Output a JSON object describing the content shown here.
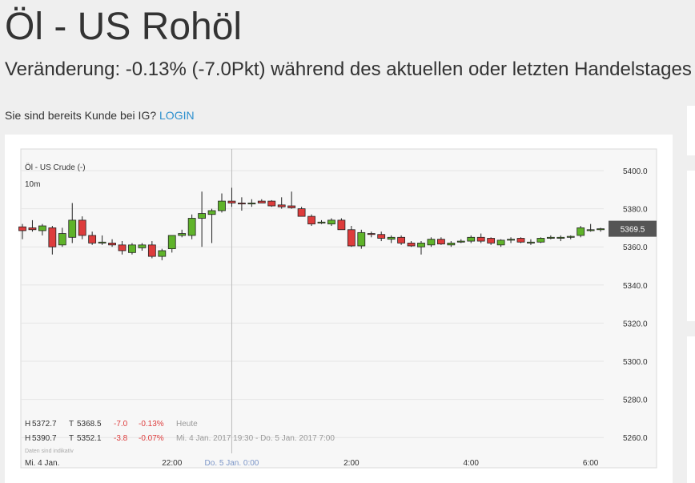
{
  "header": {
    "title": "Öl - US Rohöl",
    "change_text": "Veränderung: -0.13% (-7.0Pkt) während des aktuellen oder letzten Handelstages",
    "login_prompt": "Sie sind bereits Kunde bei IG?",
    "login_link": "LOGIN"
  },
  "chart_data": {
    "type": "candlestick",
    "title": "Öl - US Crude (-)",
    "interval": "10m",
    "ylim": [
      5252,
      5408
    ],
    "y_ticks": [
      "5400.0",
      "5380.0",
      "5360.0",
      "5340.0",
      "5320.0",
      "5300.0",
      "5280.0",
      "5260.0"
    ],
    "x_ticks": [
      {
        "label": "Mi. 4 Jan.",
        "index": 0
      },
      {
        "label": "22:00",
        "index": 15
      },
      {
        "label": "Do. 5 Jan. 0:00",
        "index": 21
      },
      {
        "label": "2:00",
        "index": 33
      },
      {
        "label": "4:00",
        "index": 45
      },
      {
        "label": "6:00",
        "index": 57
      }
    ],
    "current_price": "5369.5",
    "session_divider_index": 21,
    "candles": [
      {
        "o": 5370.5,
        "h": 5372.0,
        "l": 5364.0,
        "c": 5368.5
      },
      {
        "o": 5370.0,
        "h": 5374.0,
        "l": 5368.0,
        "c": 5369.0
      },
      {
        "o": 5368.5,
        "h": 5372.0,
        "l": 5366.0,
        "c": 5371.0
      },
      {
        "o": 5370.0,
        "h": 5371.0,
        "l": 5356.0,
        "c": 5360.0
      },
      {
        "o": 5361.0,
        "h": 5370.0,
        "l": 5360.0,
        "c": 5367.0
      },
      {
        "o": 5365.0,
        "h": 5383.0,
        "l": 5362.0,
        "c": 5374.0
      },
      {
        "o": 5374.0,
        "h": 5376.0,
        "l": 5364.0,
        "c": 5366.0
      },
      {
        "o": 5366.0,
        "h": 5368.0,
        "l": 5361.0,
        "c": 5362.0
      },
      {
        "o": 5362.0,
        "h": 5366.0,
        "l": 5361.0,
        "c": 5362.5
      },
      {
        "o": 5362.0,
        "h": 5364.0,
        "l": 5360.0,
        "c": 5361.0
      },
      {
        "o": 5361.0,
        "h": 5363.0,
        "l": 5356.0,
        "c": 5358.0
      },
      {
        "o": 5357.0,
        "h": 5362.0,
        "l": 5356.0,
        "c": 5361.0
      },
      {
        "o": 5359.5,
        "h": 5362.0,
        "l": 5358.0,
        "c": 5361.0
      },
      {
        "o": 5361.0,
        "h": 5363.0,
        "l": 5354.0,
        "c": 5355.0
      },
      {
        "o": 5355.0,
        "h": 5359.0,
        "l": 5353.0,
        "c": 5358.0
      },
      {
        "o": 5359.0,
        "h": 5366.0,
        "l": 5357.0,
        "c": 5366.0
      },
      {
        "o": 5366.0,
        "h": 5369.0,
        "l": 5365.0,
        "c": 5367.0
      },
      {
        "o": 5366.0,
        "h": 5377.0,
        "l": 5364.0,
        "c": 5375.0
      },
      {
        "o": 5375.0,
        "h": 5389.0,
        "l": 5360.0,
        "c": 5377.5
      },
      {
        "o": 5377.0,
        "h": 5380.0,
        "l": 5362.0,
        "c": 5379.0
      },
      {
        "o": 5379.0,
        "h": 5388.0,
        "l": 5378.0,
        "c": 5384.0
      },
      {
        "o": 5384.0,
        "h": 5391.0,
        "l": 5381.0,
        "c": 5383.0
      },
      {
        "o": 5383.0,
        "h": 5386.0,
        "l": 5379.0,
        "c": 5382.5
      },
      {
        "o": 5383.0,
        "h": 5385.0,
        "l": 5381.0,
        "c": 5383.0
      },
      {
        "o": 5384.0,
        "h": 5385.0,
        "l": 5383.0,
        "c": 5383.0
      },
      {
        "o": 5384.0,
        "h": 5384.5,
        "l": 5381.0,
        "c": 5381.5
      },
      {
        "o": 5382.0,
        "h": 5386.0,
        "l": 5380.0,
        "c": 5381.0
      },
      {
        "o": 5381.5,
        "h": 5389.0,
        "l": 5380.0,
        "c": 5380.5
      },
      {
        "o": 5380.0,
        "h": 5381.0,
        "l": 5376.0,
        "c": 5376.0
      },
      {
        "o": 5376.0,
        "h": 5377.0,
        "l": 5371.0,
        "c": 5372.0
      },
      {
        "o": 5373.0,
        "h": 5374.0,
        "l": 5372.0,
        "c": 5373.0
      },
      {
        "o": 5372.0,
        "h": 5375.0,
        "l": 5371.0,
        "c": 5374.0
      },
      {
        "o": 5374.0,
        "h": 5375.0,
        "l": 5369.0,
        "c": 5369.0
      },
      {
        "o": 5369.0,
        "h": 5371.0,
        "l": 5360.0,
        "c": 5360.5
      },
      {
        "o": 5360.5,
        "h": 5369.0,
        "l": 5359.0,
        "c": 5367.5
      },
      {
        "o": 5367.0,
        "h": 5368.0,
        "l": 5365.0,
        "c": 5366.5
      },
      {
        "o": 5366.5,
        "h": 5368.0,
        "l": 5363.0,
        "c": 5364.5
      },
      {
        "o": 5364.0,
        "h": 5366.0,
        "l": 5362.0,
        "c": 5365.0
      },
      {
        "o": 5365.0,
        "h": 5366.0,
        "l": 5361.0,
        "c": 5362.0
      },
      {
        "o": 5362.0,
        "h": 5363.0,
        "l": 5360.0,
        "c": 5360.5
      },
      {
        "o": 5360.0,
        "h": 5363.0,
        "l": 5356.0,
        "c": 5362.0
      },
      {
        "o": 5361.0,
        "h": 5365.0,
        "l": 5360.0,
        "c": 5364.0
      },
      {
        "o": 5364.0,
        "h": 5365.0,
        "l": 5361.0,
        "c": 5361.5
      },
      {
        "o": 5361.0,
        "h": 5363.0,
        "l": 5360.0,
        "c": 5362.0
      },
      {
        "o": 5363.0,
        "h": 5364.0,
        "l": 5362.0,
        "c": 5363.0
      },
      {
        "o": 5363.0,
        "h": 5366.0,
        "l": 5362.0,
        "c": 5365.0
      },
      {
        "o": 5365.0,
        "h": 5367.0,
        "l": 5362.0,
        "c": 5363.0
      },
      {
        "o": 5364.5,
        "h": 5365.0,
        "l": 5361.0,
        "c": 5362.0
      },
      {
        "o": 5361.0,
        "h": 5364.0,
        "l": 5360.0,
        "c": 5363.5
      },
      {
        "o": 5364.0,
        "h": 5365.0,
        "l": 5362.0,
        "c": 5364.0
      },
      {
        "o": 5364.5,
        "h": 5365.0,
        "l": 5362.0,
        "c": 5362.5
      },
      {
        "o": 5362.0,
        "h": 5364.0,
        "l": 5361.0,
        "c": 5362.5
      },
      {
        "o": 5362.5,
        "h": 5365.0,
        "l": 5362.0,
        "c": 5364.5
      },
      {
        "o": 5365.0,
        "h": 5366.0,
        "l": 5364.0,
        "c": 5365.0
      },
      {
        "o": 5365.0,
        "h": 5366.0,
        "l": 5363.0,
        "c": 5365.0
      },
      {
        "o": 5365.0,
        "h": 5366.0,
        "l": 5364.0,
        "c": 5365.5
      },
      {
        "o": 5366.0,
        "h": 5371.0,
        "l": 5365.0,
        "c": 5370.0
      },
      {
        "o": 5369.0,
        "h": 5372.0,
        "l": 5368.0,
        "c": 5369.0
      },
      {
        "o": 5369.0,
        "h": 5370.0,
        "l": 5368.0,
        "c": 5369.5
      }
    ],
    "stats": [
      {
        "h_label": "H",
        "h_value": "5372.7",
        "t_label": "T",
        "t_value": "5368.5",
        "change": "-7.0",
        "change_pct": "-0.13%",
        "period": "Heute"
      },
      {
        "h_label": "H",
        "h_value": "5390.7",
        "t_label": "T",
        "t_value": "5352.1",
        "change": "-3.8",
        "change_pct": "-0.07%",
        "period": "Mi. 4 Jan. 2017 19:30 - Do. 5 Jan. 2017 7:00"
      }
    ],
    "disclaimer": "Daten sind indikativ",
    "colors": {
      "up": "#5fb32a",
      "down": "#dd3c3c",
      "link": "#2b8fce",
      "negative": "#dd3c3c",
      "grid": "#e6e6e6",
      "price_tag": "#555555"
    }
  }
}
